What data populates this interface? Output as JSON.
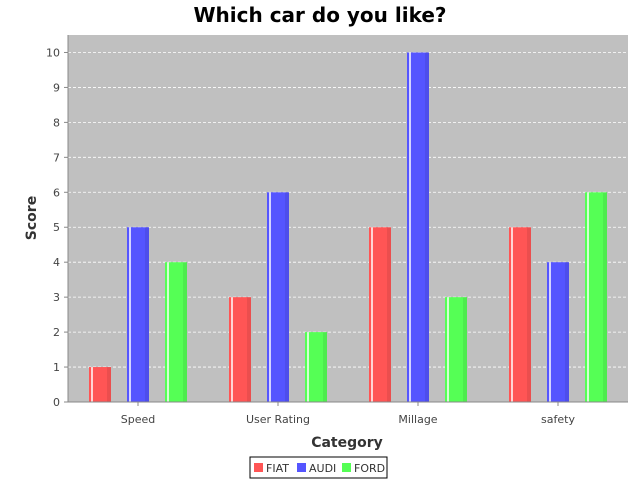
{
  "chart_data": {
    "type": "bar",
    "title": "Which car do you like?",
    "xlabel": "Category",
    "ylabel": "Score",
    "categories": [
      "Speed",
      "User Rating",
      "Millage",
      "safety"
    ],
    "series": [
      {
        "name": "FIAT",
        "color": "#ff5555",
        "values": [
          1,
          3,
          5,
          5
        ]
      },
      {
        "name": "AUDI",
        "color": "#5555ff",
        "values": [
          5,
          6,
          10,
          4
        ]
      },
      {
        "name": "FORD",
        "color": "#55ff55",
        "values": [
          4,
          2,
          3,
          6
        ]
      }
    ],
    "ylim": [
      0,
      10.5
    ],
    "yticks": [
      0,
      1,
      2,
      3,
      4,
      5,
      6,
      7,
      8,
      9,
      10
    ],
    "grid": true,
    "legend_position": "bottom",
    "plot_background": "#c0c0c0"
  }
}
